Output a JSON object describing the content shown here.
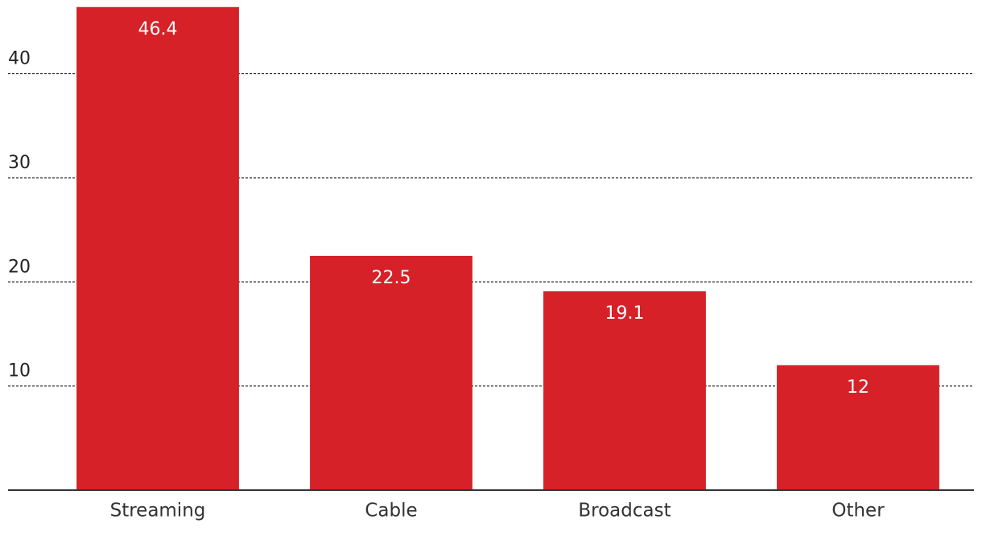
{
  "chart_data": {
    "type": "bar",
    "categories": [
      "Streaming",
      "Cable",
      "Broadcast",
      "Other"
    ],
    "values": [
      46.4,
      22.5,
      19.1,
      12
    ],
    "color": "#d62128",
    "ylim": [
      0,
      47
    ],
    "yticks": [
      10,
      20,
      30,
      40
    ],
    "grid": true
  }
}
